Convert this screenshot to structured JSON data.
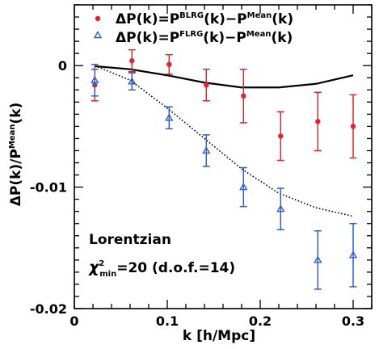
{
  "chart_data": {
    "type": "scatter",
    "xlabel": "k [h/Mpc]",
    "ylabel": {
      "main": "ΔP(k)/P",
      "sup": "Mean",
      "tail": "(k)"
    },
    "xlim": [
      0,
      0.32
    ],
    "ylim": [
      -0.02,
      0.005
    ],
    "x_ticks": [
      0,
      0.1,
      0.2,
      0.3
    ],
    "x_tick_labels": [
      "0",
      "0.1",
      "0.2",
      "0.3"
    ],
    "y_ticks": [
      0,
      -0.01,
      -0.02
    ],
    "y_tick_labels": [
      "0",
      "-0.01",
      "-0.02"
    ],
    "series": [
      {
        "name": "ΔP(k)=P^BLRG(k)−P^Mean(k)",
        "legend": {
          "pre": "ΔP(k)=P",
          "sup1": "BLRG",
          "mid": "(k)−P",
          "sup2": "Mean",
          "post": "(k)"
        },
        "marker": "filled-circle",
        "color": "#e8202a",
        "x": [
          0.022,
          0.062,
          0.102,
          0.142,
          0.182,
          0.222,
          0.262,
          0.3
        ],
        "y": [
          -0.0016,
          0.0004,
          0.0001,
          -0.0016,
          -0.0025,
          -0.0058,
          -0.0046,
          -0.005
        ],
        "err": [
          0.0013,
          0.0009,
          0.0008,
          0.0013,
          0.0022,
          0.002,
          0.0024,
          0.0026
        ]
      },
      {
        "name": "ΔP(k)=P^FLRG(k)−P^Mean(k)",
        "legend": {
          "pre": "ΔP(k)=P",
          "sup1": "FLRG",
          "mid": "(k)−P",
          "sup2": "Mean",
          "post": "(k)"
        },
        "marker": "open-triangle",
        "color": "#2a5fd9",
        "x": [
          0.022,
          0.062,
          0.102,
          0.142,
          0.182,
          0.222,
          0.262,
          0.3
        ],
        "y": [
          -0.0012,
          -0.0013,
          -0.0043,
          -0.007,
          -0.01,
          -0.0118,
          -0.016,
          -0.0156
        ],
        "err": [
          0.0013,
          0.0007,
          0.0009,
          0.0013,
          0.0016,
          0.0017,
          0.0024,
          0.0026
        ]
      }
    ],
    "curves": [
      {
        "style": "solid",
        "color": "#000000",
        "x": [
          0.022,
          0.06,
          0.1,
          0.14,
          0.18,
          0.22,
          0.26,
          0.3
        ],
        "y": [
          -5e-05,
          -0.0003,
          -0.0008,
          -0.0014,
          -0.0018,
          -0.0018,
          -0.0015,
          -0.0008
        ]
      },
      {
        "style": "dotted",
        "color": "#000000",
        "x": [
          0.022,
          0.06,
          0.1,
          0.14,
          0.18,
          0.22,
          0.26,
          0.3
        ],
        "y": [
          0.0,
          -0.0012,
          -0.0035,
          -0.006,
          -0.0085,
          -0.0105,
          -0.0117,
          -0.0124
        ]
      }
    ],
    "annotations": {
      "line1": "Lorentzian",
      "chi_symbol": "χ",
      "chi_sup": "2",
      "chi_sub": "min",
      "chi_rest": "=20  (d.o.f.=14)"
    },
    "legend_position": "top-right",
    "grid": false
  }
}
